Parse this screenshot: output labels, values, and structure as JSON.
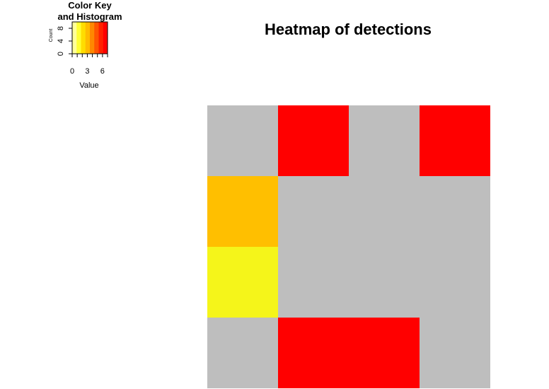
{
  "chart_data": {
    "type": "heatmap",
    "title": "Heatmap of detections",
    "rows": 4,
    "cols": 4,
    "values": [
      [
        0,
        7,
        0,
        7
      ],
      [
        4,
        0,
        0,
        0
      ],
      [
        2,
        0,
        0,
        0
      ],
      [
        0,
        7,
        7,
        0
      ]
    ],
    "zero_color": "#BEBEBE",
    "colors": {
      "2": "#F5F51A",
      "4": "#FFBF00",
      "7": "#FF0000"
    },
    "color_key": {
      "title_line1": "Color Key",
      "title_line2": "and Histogram",
      "xlabel": "Value",
      "ylabel": "Count",
      "x_ticks": [
        "0",
        "3",
        "6"
      ],
      "y_ticks": [
        "0",
        "4",
        "8"
      ],
      "value_range": [
        0,
        7
      ],
      "gradient": [
        "#FFFF99",
        "#FFFF33",
        "#FFDD00",
        "#FFBB00",
        "#FF8800",
        "#FF5500",
        "#FF2200",
        "#FF0000"
      ]
    }
  }
}
